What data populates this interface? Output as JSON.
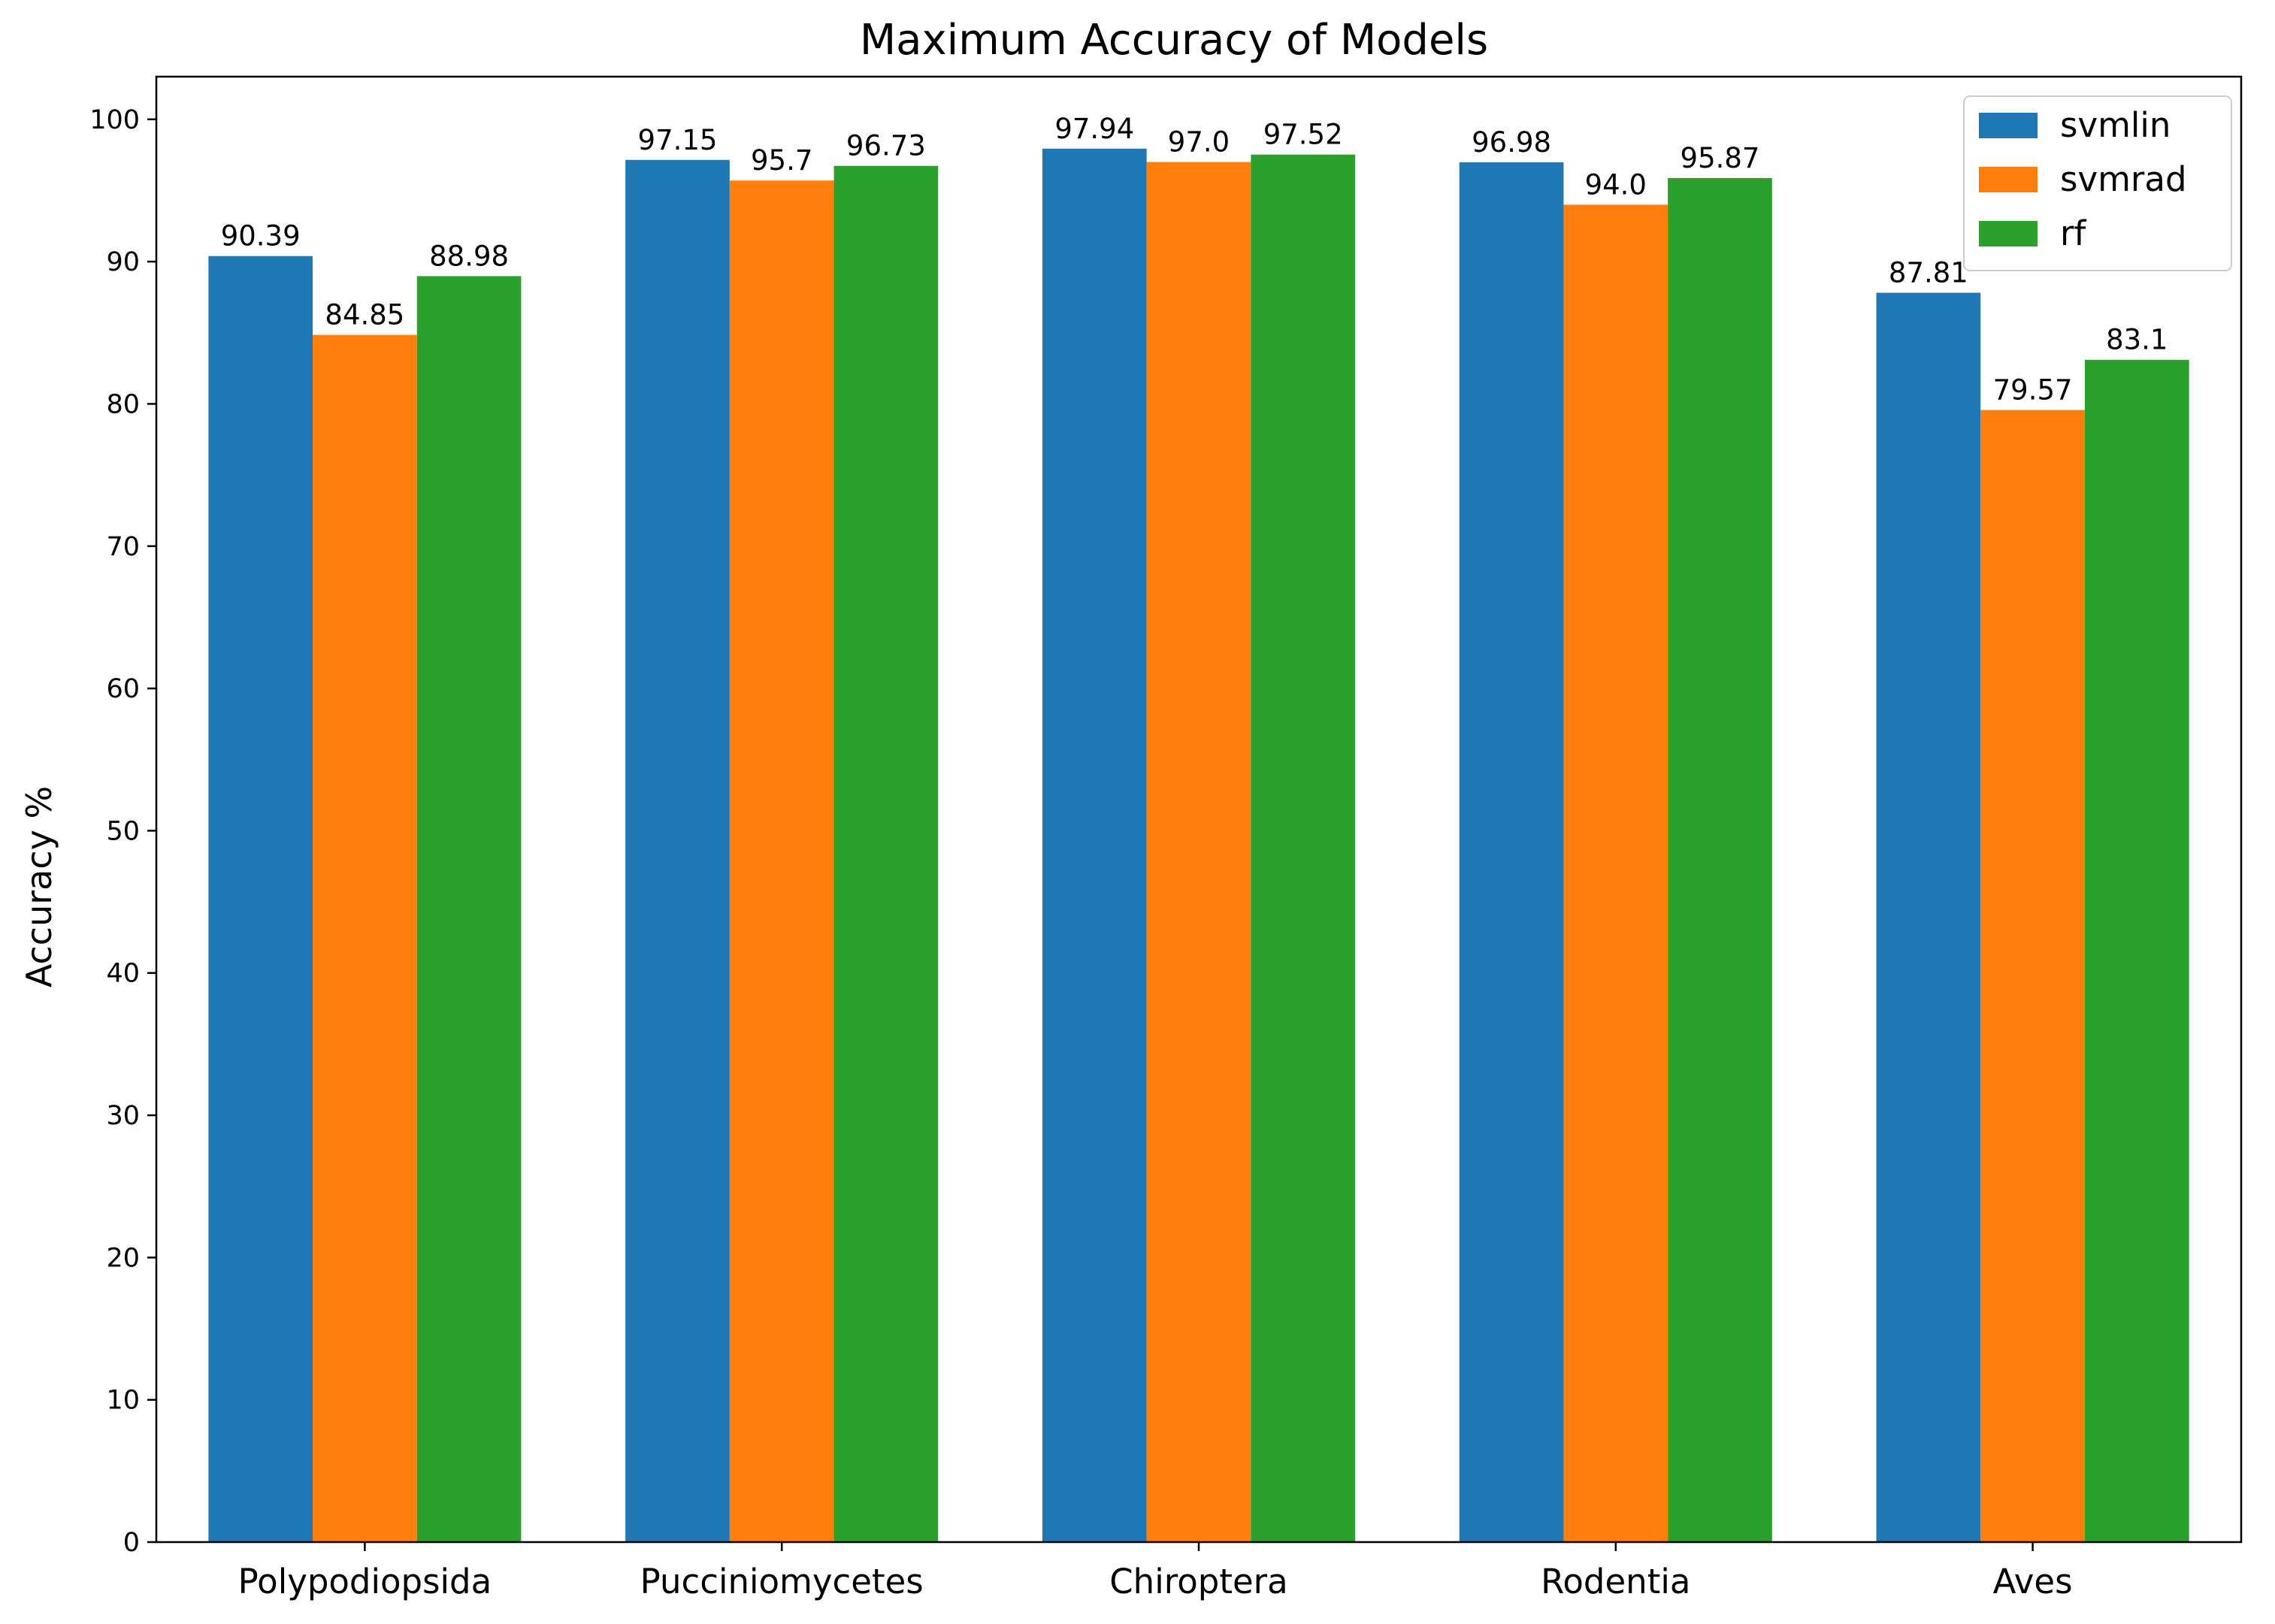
{
  "chart_data": {
    "type": "bar",
    "title": "Maximum Accuracy of Models",
    "xlabel": "",
    "ylabel": "Accuracy %",
    "categories": [
      "Polypodiopsida",
      "Pucciniomycetes",
      "Chiroptera",
      "Rodentia",
      "Aves"
    ],
    "series": [
      {
        "name": "svmlin",
        "color": "#1f77b4",
        "values": [
          90.39,
          97.15,
          97.94,
          96.98,
          87.81
        ],
        "labels": [
          "90.39",
          "97.15",
          "97.94",
          "96.98",
          "87.81"
        ]
      },
      {
        "name": "svmrad",
        "color": "#ff7f0e",
        "values": [
          84.85,
          95.7,
          97.0,
          94.0,
          79.57
        ],
        "labels": [
          "84.85",
          "95.7",
          "97.0",
          "94.0",
          "79.57"
        ]
      },
      {
        "name": "rf",
        "color": "#2ca02c",
        "values": [
          88.98,
          96.73,
          97.52,
          95.87,
          83.1
        ],
        "labels": [
          "88.98",
          "96.73",
          "97.52",
          "95.87",
          "83.1"
        ]
      }
    ],
    "ylim": [
      0,
      103
    ],
    "yticks": [
      "0",
      "10",
      "20",
      "30",
      "40",
      "50",
      "60",
      "70",
      "80",
      "90",
      "100"
    ],
    "grid": false,
    "legend": "top-right"
  }
}
